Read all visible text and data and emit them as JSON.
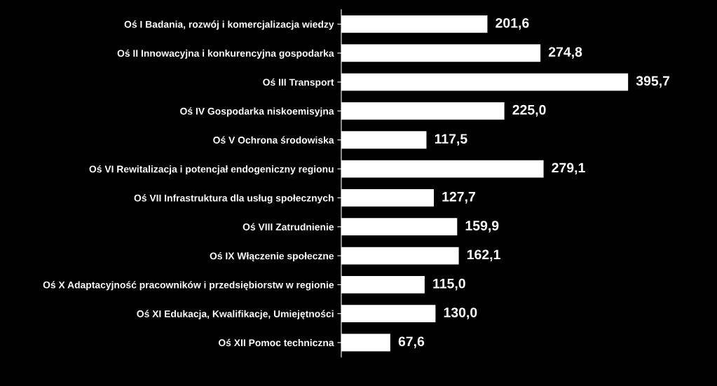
{
  "chart_data": {
    "type": "bar",
    "orientation": "horizontal",
    "categories": [
      "Oś I Badania, rozwój i komercjalizacja wiedzy",
      "Oś II Innowacyjna i konkurencyjna gospodarka",
      "Oś III Transport",
      "Oś IV Gospodarka niskoemisyjna",
      "Oś V Ochrona środowiska",
      "Oś VI Rewitalizacja i potencjał endogeniczny regionu",
      "Oś VII Infrastruktura dla usług społecznych",
      "Oś VIII Zatrudnienie",
      "Oś IX Włączenie społeczne",
      "Oś X Adaptacyjność pracowników i przedsiębiorstw w regionie",
      "Oś XI Edukacja, Kwalifikacje, Umiejętności",
      "Oś XII Pomoc techniczna"
    ],
    "values": [
      201.6,
      274.8,
      395.7,
      225.0,
      117.5,
      279.1,
      127.7,
      159.9,
      162.1,
      115.0,
      130.0,
      67.6
    ],
    "value_labels": [
      "201,6",
      "274,8",
      "395,7",
      "225,0",
      "117,5",
      "279,1",
      "127,7",
      "159,9",
      "162,1",
      "115,0",
      "130,0",
      "67,6"
    ],
    "color": "#ffffff",
    "grid": false,
    "legend": false
  }
}
